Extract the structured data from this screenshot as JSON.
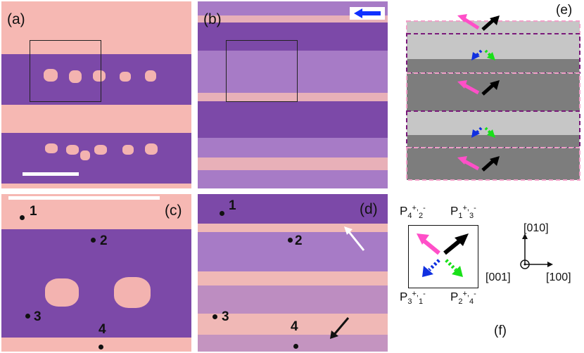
{
  "panels": {
    "a": {
      "label": "(a)"
    },
    "b": {
      "label": "(b)"
    },
    "c": {
      "label": "(c)",
      "points": [
        "1",
        "2",
        "3",
        "4"
      ]
    },
    "d": {
      "label": "(d)",
      "points": [
        "1",
        "2",
        "3",
        "4"
      ]
    },
    "e": {
      "label": "(e)"
    },
    "f": {
      "label": "(f)"
    }
  },
  "polarization_labels": {
    "top_left": {
      "base": "P",
      "sub1": "4",
      "sup1": "+",
      "sep": ",",
      "sub2": "2",
      "sup2": "-"
    },
    "top_right": {
      "base": "P",
      "sub1": "1",
      "sup1": "+",
      "sep": ",",
      "sub2": "3",
      "sup2": "-"
    },
    "bottom_left": {
      "base": "P",
      "sub1": "3",
      "sup1": "+",
      "sep": ",",
      "sub2": "1",
      "sup2": "-"
    },
    "bottom_right": {
      "base": "P",
      "sub1": "2",
      "sup1": "+",
      "sep": ",",
      "sub2": "4",
      "sup2": "-"
    }
  },
  "axes": {
    "y": "[010]",
    "x": "[100]",
    "z": "[001]"
  },
  "colors": {
    "pink": "#f6b8b3",
    "purple": "#7c49a8",
    "magenta_arrow": "#ff4fc8",
    "black_arrow": "#000000",
    "blue_arrow": "#1030e0",
    "green_arrow": "#19e019",
    "indicator_arrow": "#1030ff",
    "domain_light": "#c6c6c6",
    "domain_dark": "#7d7d7d",
    "border_pink": "#f0a0c8",
    "border_purple": "#7a1a7a"
  }
}
